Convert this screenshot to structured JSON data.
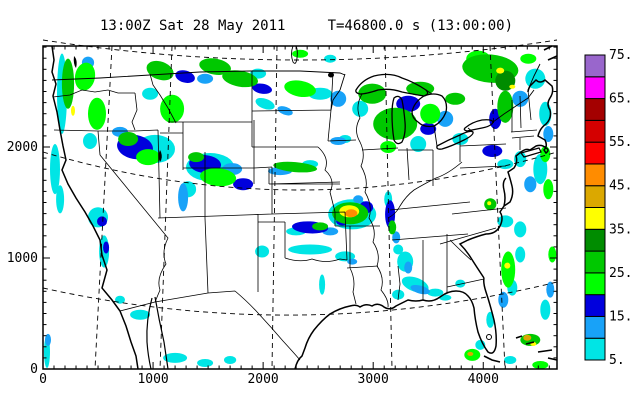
{
  "chart_data": {
    "type": "heatmap",
    "title": "13:00Z Sat 28 May 2011     T=46800.0 s (13:00:00)",
    "field": "composite radar reflectivity (dBZ) over CONUS basemap",
    "x_axis": {
      "min": 0,
      "max": 4670,
      "major_tick": 1000,
      "minor_tick": 100,
      "tick_labels": [
        "0",
        "1000",
        "2000",
        "3000",
        "4000"
      ]
    },
    "y_axis": {
      "min": 0,
      "max": 2910,
      "major_tick": 1000,
      "minor_tick": 100,
      "tick_labels": [
        "0",
        "1000",
        "2000"
      ]
    },
    "colorbar": {
      "min_dbz": 5,
      "step_dbz": 5,
      "tick_labels_top_to_bottom": [
        "75.",
        "65.",
        "55.",
        "45.",
        "35.",
        "25.",
        "15.",
        "5."
      ],
      "cells_bottom_to_top": [
        "#00E5E5",
        "#18A2F8",
        "#0000DD",
        "#00FF00",
        "#00C800",
        "#008C00",
        "#FFFF00",
        "#DBA800",
        "#FF8C00",
        "#FC0000",
        "#D40000",
        "#A40000",
        "#FF00FF",
        "#9966CC"
      ]
    },
    "line_color": "#000000",
    "background_color": "#FFFFFF",
    "echoes": {
      "format": "[x, y, rx, ry, dbz, rot_deg]",
      "units": "axis units (km)",
      "points": [
        [
          173,
          2480,
          45,
          362,
          8,
          0
        ],
        [
          227,
          2570,
          55,
          226,
          27,
          0
        ],
        [
          273,
          2326,
          18,
          45,
          37,
          0
        ],
        [
          382,
          2634,
          91,
          127,
          22,
          10
        ],
        [
          409,
          2760,
          55,
          54,
          12,
          0
        ],
        [
          491,
          2299,
          82,
          145,
          22,
          0
        ],
        [
          427,
          2054,
          64,
          72,
          8,
          0
        ],
        [
          109,
          1801,
          45,
          226,
          8,
          0
        ],
        [
          155,
          1529,
          36,
          127,
          8,
          0
        ],
        [
          1064,
          2688,
          127,
          81,
          27,
          20
        ],
        [
          973,
          2480,
          73,
          54,
          8,
          0
        ],
        [
          1173,
          2344,
          109,
          127,
          22,
          0
        ],
        [
          1291,
          2634,
          91,
          54,
          17,
          15
        ],
        [
          1564,
          2724,
          145,
          72,
          27,
          10
        ],
        [
          1473,
          2615,
          73,
          45,
          12,
          0
        ],
        [
          1791,
          2615,
          164,
          72,
          27,
          10
        ],
        [
          1991,
          2525,
          91,
          45,
          17,
          10
        ],
        [
          1954,
          2661,
          73,
          45,
          8,
          0
        ],
        [
          2336,
          2525,
          145,
          72,
          22,
          10
        ],
        [
          2518,
          2480,
          109,
          54,
          8,
          0
        ],
        [
          2682,
          2434,
          73,
          72,
          12,
          0
        ],
        [
          2018,
          2389,
          91,
          45,
          8,
          20
        ],
        [
          2200,
          2326,
          73,
          36,
          12,
          20
        ],
        [
          2336,
          2840,
          73,
          36,
          22,
          0
        ],
        [
          2609,
          2796,
          55,
          36,
          8,
          0
        ],
        [
          2991,
          2480,
          127,
          91,
          27,
          0
        ],
        [
          2882,
          2344,
          73,
          72,
          8,
          0
        ],
        [
          3200,
          2208,
          200,
          145,
          27,
          0
        ],
        [
          3318,
          2389,
          109,
          72,
          17,
          0
        ],
        [
          3427,
          2525,
          127,
          63,
          27,
          0
        ],
        [
          3518,
          2299,
          91,
          91,
          22,
          0
        ],
        [
          3500,
          2163,
          73,
          54,
          17,
          0
        ],
        [
          3136,
          2000,
          73,
          54,
          22,
          0
        ],
        [
          2745,
          2072,
          55,
          36,
          8,
          0
        ],
        [
          3409,
          2027,
          73,
          72,
          8,
          0
        ],
        [
          3654,
          2253,
          73,
          72,
          12,
          0
        ],
        [
          3745,
          2434,
          91,
          54,
          27,
          0
        ],
        [
          3791,
          2072,
          73,
          54,
          8,
          0
        ],
        [
          4064,
          2706,
          255,
          127,
          27,
          5
        ],
        [
          3954,
          2796,
          109,
          72,
          22,
          0
        ],
        [
          4200,
          2597,
          91,
          91,
          32,
          0
        ],
        [
          4154,
          2688,
          36,
          27,
          37,
          0
        ],
        [
          4264,
          2543,
          27,
          18,
          37,
          0
        ],
        [
          4200,
          2362,
          73,
          145,
          27,
          0
        ],
        [
          4109,
          2253,
          55,
          91,
          17,
          0
        ],
        [
          4336,
          2434,
          73,
          72,
          12,
          0
        ],
        [
          4473,
          2615,
          91,
          91,
          8,
          0
        ],
        [
          4564,
          2299,
          55,
          109,
          8,
          0
        ],
        [
          4409,
          2796,
          73,
          45,
          22,
          0
        ],
        [
          4591,
          2117,
          45,
          72,
          12,
          0
        ],
        [
          4564,
          1936,
          45,
          72,
          22,
          0
        ],
        [
          4518,
          1801,
          64,
          136,
          8,
          0
        ],
        [
          4591,
          1620,
          45,
          91,
          22,
          0
        ],
        [
          4427,
          1665,
          55,
          72,
          12,
          0
        ],
        [
          4336,
          1891,
          55,
          72,
          8,
          0
        ],
        [
          4082,
          1964,
          91,
          54,
          17,
          0
        ],
        [
          4200,
          1846,
          73,
          45,
          8,
          0
        ],
        [
          4064,
          1484,
          55,
          54,
          27,
          0
        ],
        [
          4054,
          1493,
          18,
          18,
          37,
          0
        ],
        [
          4200,
          1330,
          73,
          54,
          8,
          0
        ],
        [
          4336,
          1258,
          55,
          72,
          8,
          0
        ],
        [
          836,
          2000,
          164,
          109,
          17,
          10
        ],
        [
          773,
          2072,
          91,
          63,
          27,
          0
        ],
        [
          955,
          1909,
          109,
          72,
          22,
          0
        ],
        [
          700,
          2136,
          73,
          45,
          12,
          0
        ],
        [
          1018,
          1982,
          182,
          127,
          8,
          0
        ],
        [
          1518,
          1819,
          218,
          127,
          8,
          0
        ],
        [
          1473,
          1846,
          145,
          81,
          17,
          5
        ],
        [
          1591,
          1728,
          164,
          81,
          22,
          5
        ],
        [
          1718,
          1801,
          91,
          54,
          12,
          0
        ],
        [
          1391,
          1909,
          73,
          45,
          27,
          0
        ],
        [
          1818,
          1665,
          91,
          54,
          17,
          0
        ],
        [
          1318,
          1620,
          73,
          72,
          8,
          0
        ],
        [
          1273,
          1547,
          45,
          127,
          12,
          0
        ],
        [
          555,
          1059,
          45,
          145,
          8,
          0
        ],
        [
          573,
          1095,
          27,
          54,
          17,
          0
        ],
        [
          500,
          1367,
          91,
          91,
          8,
          0
        ],
        [
          536,
          1330,
          45,
          45,
          17,
          0
        ],
        [
          2291,
          1819,
          200,
          45,
          27,
          5
        ],
        [
          2154,
          1783,
          109,
          36,
          12,
          0
        ],
        [
          2427,
          1846,
          73,
          36,
          8,
          0
        ],
        [
          2682,
          2054,
          73,
          36,
          12,
          0
        ],
        [
          2427,
          1276,
          164,
          54,
          17,
          3
        ],
        [
          2518,
          1285,
          73,
          36,
          27,
          0
        ],
        [
          2300,
          1240,
          91,
          36,
          8,
          0
        ],
        [
          2609,
          1240,
          73,
          36,
          12,
          0
        ],
        [
          2809,
          1394,
          218,
          136,
          8,
          0
        ],
        [
          2791,
          1403,
          164,
          100,
          27,
          0
        ],
        [
          2782,
          1421,
          91,
          54,
          37,
          0
        ],
        [
          2800,
          1403,
          55,
          36,
          47,
          0
        ],
        [
          2936,
          1457,
          64,
          54,
          17,
          0
        ],
        [
          2718,
          1330,
          55,
          36,
          17,
          0
        ],
        [
          2864,
          1529,
          45,
          36,
          12,
          0
        ],
        [
          3154,
          1394,
          45,
          127,
          17,
          0
        ],
        [
          3173,
          1276,
          36,
          63,
          27,
          0
        ],
        [
          3136,
          1529,
          36,
          72,
          8,
          0
        ],
        [
          3209,
          1186,
          36,
          54,
          12,
          0
        ],
        [
          2427,
          1077,
          200,
          45,
          8,
          0
        ],
        [
          2745,
          1014,
          91,
          45,
          8,
          0
        ],
        [
          2809,
          968,
          45,
          27,
          12,
          0
        ],
        [
          1991,
          1059,
          64,
          54,
          8,
          0
        ],
        [
          2536,
          760,
          27,
          91,
          8,
          0
        ],
        [
          3291,
          968,
          73,
          91,
          8,
          0
        ],
        [
          3318,
          914,
          36,
          54,
          12,
          0
        ],
        [
          3227,
          1077,
          45,
          45,
          8,
          0
        ],
        [
          3382,
          760,
          127,
          63,
          8,
          20
        ],
        [
          3427,
          715,
          91,
          36,
          12,
          15
        ],
        [
          3564,
          688,
          73,
          36,
          8,
          0
        ],
        [
          3654,
          643,
          55,
          27,
          8,
          0
        ],
        [
          3227,
          670,
          55,
          45,
          8,
          0
        ],
        [
          3791,
          769,
          45,
          36,
          8,
          0
        ],
        [
          4227,
          896,
          64,
          163,
          22,
          0
        ],
        [
          4218,
          932,
          27,
          27,
          37,
          0
        ],
        [
          4264,
          733,
          45,
          72,
          8,
          0
        ],
        [
          4182,
          624,
          45,
          72,
          12,
          0
        ],
        [
          4336,
          1032,
          45,
          72,
          8,
          0
        ],
        [
          4427,
          262,
          91,
          54,
          27,
          0
        ],
        [
          4400,
          281,
          36,
          27,
          42,
          0
        ],
        [
          4455,
          226,
          27,
          18,
          37,
          0
        ],
        [
          3900,
          127,
          73,
          54,
          22,
          0
        ],
        [
          3882,
          136,
          27,
          18,
          42,
          0
        ],
        [
          3973,
          217,
          45,
          45,
          8,
          0
        ],
        [
          4064,
          443,
          36,
          72,
          8,
          0
        ],
        [
          4564,
          534,
          45,
          91,
          8,
          0
        ],
        [
          4609,
          715,
          36,
          72,
          12,
          0
        ],
        [
          4627,
          1032,
          36,
          72,
          22,
          0
        ],
        [
          4518,
          36,
          73,
          36,
          22,
          0
        ],
        [
          4245,
          81,
          55,
          36,
          8,
          0
        ],
        [
          36,
          154,
          27,
          145,
          8,
          0
        ],
        [
          882,
          489,
          91,
          45,
          8,
          0
        ],
        [
          1200,
          100,
          109,
          45,
          8,
          0
        ],
        [
          1473,
          54,
          73,
          36,
          8,
          0
        ],
        [
          1700,
          81,
          55,
          36,
          8,
          0
        ],
        [
          700,
          624,
          45,
          36,
          8,
          0
        ],
        [
          45,
          262,
          27,
          54,
          12,
          0
        ]
      ]
    }
  }
}
